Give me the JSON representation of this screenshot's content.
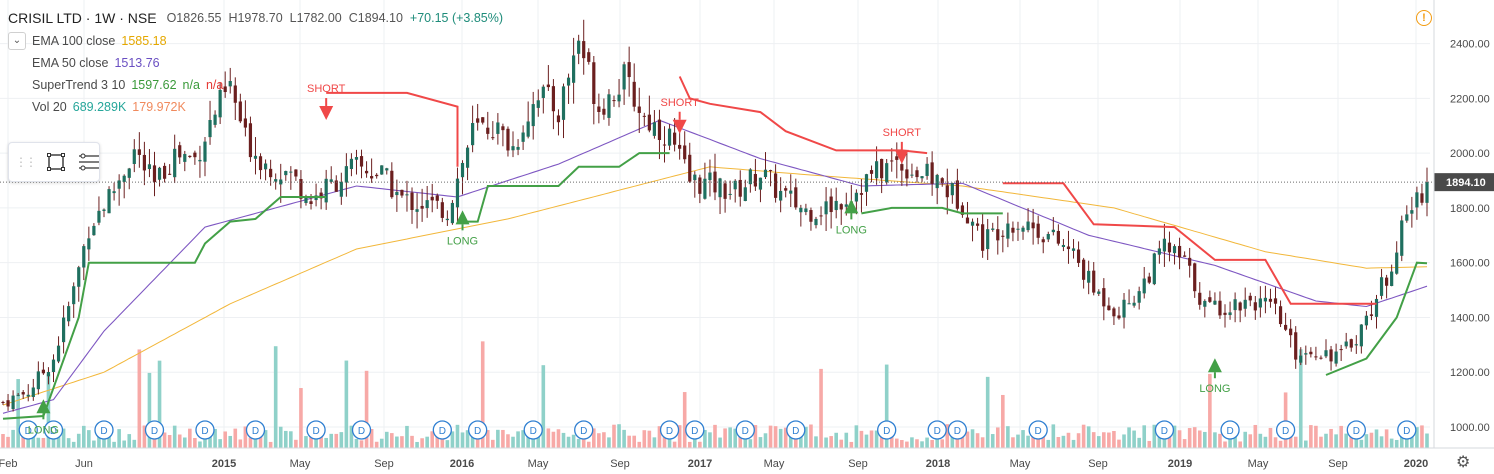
{
  "header": {
    "symbol": "CRISIL LTD · 1W · NSE",
    "open": "O1826.55",
    "high": "H1978.70",
    "low": "L1782.00",
    "close": "C1894.10",
    "change": "+70.15 (+3.85%)"
  },
  "indicators": [
    {
      "label": "EMA 100 close",
      "value": "1585.18",
      "color": "#e5a800"
    },
    {
      "label": "EMA 50 close",
      "value": "1513.76",
      "color": "#6a4fc2"
    },
    {
      "label": "SuperTrend 3 10",
      "value": "1597.62",
      "extra": "n/a",
      "extra2": "n/a",
      "color": "#3a9a3a",
      "color2": "#e53935"
    },
    {
      "label": "Vol 20",
      "value": "689.289K",
      "extra": "179.972K",
      "color": "#26a69a",
      "color2": "#f08a5d"
    }
  ],
  "colors": {
    "up": "#26a69a",
    "down": "#ef5350",
    "candle_body": "#6b1f1f",
    "st_up": "#43a047",
    "st_down": "#f04848",
    "ema100": "#f2b73a",
    "ema50": "#7e57c2",
    "grid": "#eef0f3",
    "axis_text": "#4a4a4a",
    "price_badge": "#4a4a4a",
    "vol_up": "#8fd1c9",
    "vol_down": "#f7a9a7"
  },
  "chart_data": {
    "type": "candlestick",
    "title": "CRISIL LTD · 1W · NSE",
    "xlabel": "",
    "ylabel": "",
    "ylim": [
      950,
      2500
    ],
    "y_ticks": [
      1000,
      1200,
      1400,
      1600,
      1800,
      2000,
      2200,
      2400
    ],
    "y_tick_labels": [
      "1000.00",
      "1200.00",
      "1400.00",
      "1600.00",
      "1800.00",
      "2000.00",
      "2200.00",
      "2400.00"
    ],
    "x_ticks": [
      "Feb",
      "Jun",
      "2015",
      "May",
      "Sep",
      "2016",
      "May",
      "Sep",
      "2017",
      "May",
      "Sep",
      "2018",
      "May",
      "Sep",
      "2019",
      "May",
      "Sep",
      "2020"
    ],
    "last_price": 1894.1,
    "last_price_label": "1894.10",
    "price_path": [
      [
        0,
        1090
      ],
      [
        5,
        1130
      ],
      [
        10,
        1250
      ],
      [
        14,
        1500
      ],
      [
        17,
        1730
      ],
      [
        22,
        1870
      ],
      [
        26,
        2010
      ],
      [
        30,
        1880
      ],
      [
        34,
        2000
      ],
      [
        38,
        1980
      ],
      [
        42,
        2150
      ],
      [
        45,
        2240
      ],
      [
        48,
        2050
      ],
      [
        52,
        1960
      ],
      [
        57,
        1920
      ],
      [
        61,
        1830
      ],
      [
        66,
        1900
      ],
      [
        70,
        1950
      ],
      [
        75,
        1920
      ],
      [
        79,
        1830
      ],
      [
        84,
        1810
      ],
      [
        88,
        1790
      ],
      [
        93,
        2080
      ],
      [
        97,
        2100
      ],
      [
        101,
        2020
      ],
      [
        106,
        2230
      ],
      [
        110,
        2150
      ],
      [
        114,
        2420
      ],
      [
        118,
        2170
      ],
      [
        123,
        2270
      ],
      [
        127,
        2130
      ],
      [
        132,
        2060
      ],
      [
        136,
        1900
      ],
      [
        141,
        1880
      ],
      [
        145,
        1860
      ],
      [
        150,
        1930
      ],
      [
        154,
        1850
      ],
      [
        159,
        1790
      ],
      [
        163,
        1800
      ],
      [
        168,
        1850
      ],
      [
        172,
        1920
      ],
      [
        177,
        1970
      ],
      [
        181,
        1930
      ],
      [
        185,
        1900
      ],
      [
        190,
        1820
      ],
      [
        194,
        1680
      ],
      [
        199,
        1750
      ],
      [
        203,
        1740
      ],
      [
        207,
        1700
      ],
      [
        212,
        1630
      ],
      [
        216,
        1500
      ],
      [
        221,
        1420
      ],
      [
        225,
        1500
      ],
      [
        230,
        1660
      ],
      [
        234,
        1600
      ],
      [
        238,
        1440
      ],
      [
        243,
        1440
      ],
      [
        247,
        1470
      ],
      [
        252,
        1420
      ],
      [
        256,
        1270
      ],
      [
        260,
        1280
      ],
      [
        265,
        1260
      ],
      [
        269,
        1360
      ],
      [
        274,
        1550
      ],
      [
        278,
        1770
      ],
      [
        282,
        1894
      ]
    ],
    "series": [
      {
        "name": "EMA 100 close",
        "last": 1585.18,
        "points": [
          [
            0,
            1080
          ],
          [
            20,
            1200
          ],
          [
            45,
            1450
          ],
          [
            70,
            1650
          ],
          [
            100,
            1760
          ],
          [
            140,
            1950
          ],
          [
            160,
            1920
          ],
          [
            190,
            1880
          ],
          [
            220,
            1800
          ],
          [
            250,
            1640
          ],
          [
            270,
            1580
          ],
          [
            282,
            1585
          ]
        ]
      },
      {
        "name": "EMA 50 close",
        "last": 1513.76,
        "points": [
          [
            0,
            1050
          ],
          [
            10,
            1100
          ],
          [
            20,
            1350
          ],
          [
            40,
            1730
          ],
          [
            70,
            1880
          ],
          [
            90,
            1840
          ],
          [
            110,
            1960
          ],
          [
            130,
            2120
          ],
          [
            150,
            1980
          ],
          [
            170,
            1880
          ],
          [
            190,
            1890
          ],
          [
            215,
            1700
          ],
          [
            240,
            1590
          ],
          [
            260,
            1460
          ],
          [
            270,
            1440
          ],
          [
            282,
            1514
          ]
        ]
      },
      {
        "name": "SuperTrend 3 10",
        "last": 1597.62,
        "segments": [
          {
            "trend": "up",
            "points": [
              [
                0,
                1030
              ],
              [
                8,
                1040
              ],
              [
                15,
                1400
              ],
              [
                17,
                1600
              ],
              [
                38,
                1600
              ],
              [
                40,
                1670
              ],
              [
                45,
                1750
              ],
              [
                50,
                1760
              ],
              [
                55,
                1840
              ],
              [
                64,
                1840
              ],
              [
                64,
                1840
              ]
            ]
          },
          {
            "trend": "down",
            "points": [
              [
                64,
                2220
              ],
              [
                80,
                2220
              ],
              [
                90,
                2170
              ],
              [
                90,
                1950
              ]
            ]
          },
          {
            "trend": "up",
            "points": [
              [
                90,
                1750
              ],
              [
                94,
                1750
              ],
              [
                96,
                1880
              ],
              [
                110,
                1880
              ],
              [
                114,
                1950
              ],
              [
                122,
                1950
              ],
              [
                126,
                2000
              ],
              [
                132,
                2000
              ]
            ]
          },
          {
            "trend": "down",
            "points": [
              [
                134,
                2280
              ],
              [
                136,
                2200
              ],
              [
                140,
                2180
              ],
              [
                150,
                2150
              ],
              [
                155,
                2080
              ],
              [
                165,
                2010
              ],
              [
                178,
                2010
              ],
              [
                183,
                2000
              ]
            ]
          },
          {
            "trend": "up",
            "points": [
              [
                170,
                1780
              ],
              [
                176,
                1800
              ],
              [
                186,
                1800
              ],
              [
                190,
                1780
              ],
              [
                198,
                1780
              ]
            ]
          },
          {
            "trend": "down",
            "points": [
              [
                198,
                1890
              ],
              [
                210,
                1890
              ],
              [
                216,
                1740
              ],
              [
                232,
                1730
              ],
              [
                240,
                1610
              ],
              [
                250,
                1610
              ],
              [
                255,
                1450
              ],
              [
                272,
                1450
              ]
            ]
          },
          {
            "trend": "up",
            "points": [
              [
                262,
                1190
              ],
              [
                270,
                1250
              ],
              [
                276,
                1400
              ],
              [
                280,
                1600
              ],
              [
                282,
                1598
              ]
            ]
          }
        ]
      }
    ],
    "annotations": [
      {
        "text": "LONG",
        "x": 8,
        "price": 1050,
        "type": "long"
      },
      {
        "text": "SHORT",
        "x": 64,
        "price": 2150,
        "type": "short"
      },
      {
        "text": "LONG",
        "x": 91,
        "price": 1740,
        "type": "long"
      },
      {
        "text": "SHORT",
        "x": 134,
        "price": 2100,
        "type": "short"
      },
      {
        "text": "LONG",
        "x": 168,
        "price": 1780,
        "type": "long"
      },
      {
        "text": "SHORT",
        "x": 178,
        "price": 1990,
        "type": "short"
      },
      {
        "text": "LONG",
        "x": 240,
        "price": 1200,
        "type": "long"
      }
    ],
    "dividend_markers": [
      {
        "label": "D",
        "x": 5
      },
      {
        "label": "D",
        "x": 10
      },
      {
        "label": "D",
        "x": 20
      },
      {
        "label": "D",
        "x": 30
      },
      {
        "label": "D",
        "x": 40
      },
      {
        "label": "D",
        "x": 50
      },
      {
        "label": "D",
        "x": 62
      },
      {
        "label": "D",
        "x": 71
      },
      {
        "label": "D",
        "x": 87
      },
      {
        "label": "D",
        "x": 94
      },
      {
        "label": "D",
        "x": 105
      },
      {
        "label": "D",
        "x": 115
      },
      {
        "label": "D",
        "x": 132
      },
      {
        "label": "D",
        "x": 137
      },
      {
        "label": "D",
        "x": 147
      },
      {
        "label": "D",
        "x": 157
      },
      {
        "label": "D",
        "x": 175
      },
      {
        "label": "D",
        "x": 185
      },
      {
        "label": "D",
        "x": 189
      },
      {
        "label": "D",
        "x": 205
      },
      {
        "label": "D",
        "x": 230
      },
      {
        "label": "D",
        "x": 243
      },
      {
        "label": "D",
        "x": 254
      },
      {
        "label": "D",
        "x": 268
      },
      {
        "label": "D",
        "x": 278
      }
    ],
    "volume": {
      "ylim": [
        0,
        1
      ],
      "bars": 282
    }
  }
}
